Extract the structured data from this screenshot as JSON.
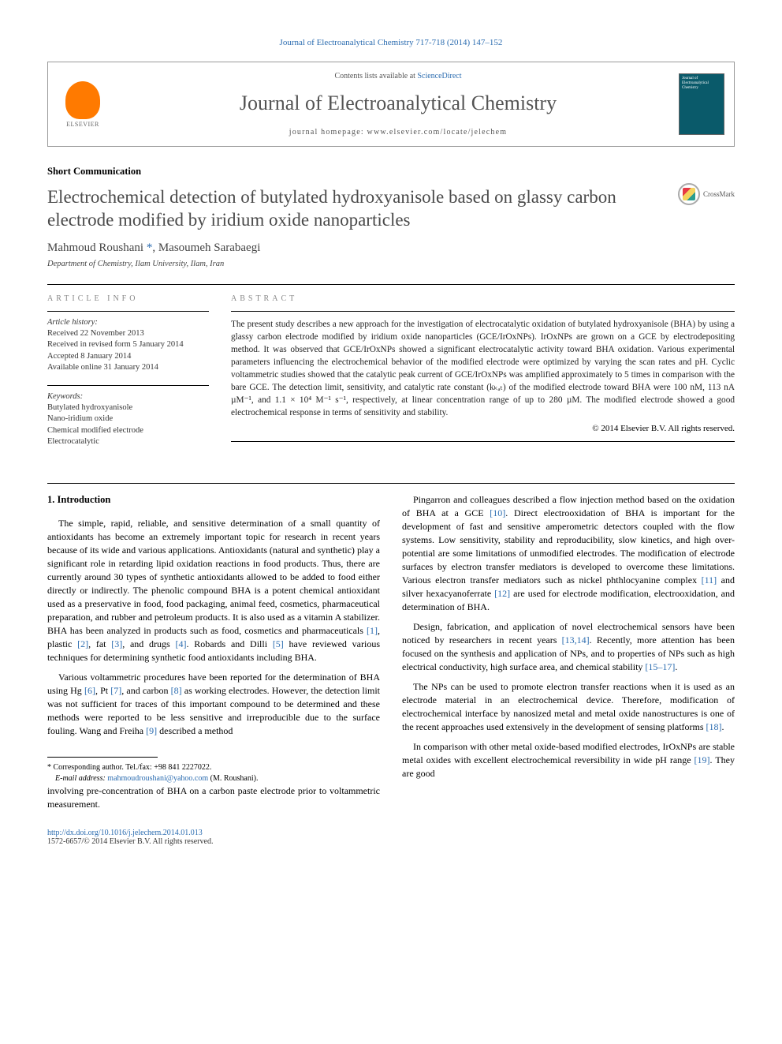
{
  "journal": {
    "reference": "Journal of Electroanalytical Chemistry 717-718 (2014) 147–152",
    "contentsLine": "Contents lists available at ",
    "contentsLink": "ScienceDirect",
    "name": "Journal of Electroanalytical Chemistry",
    "homepagePrefix": "journal homepage: ",
    "homepage": "www.elsevier.com/locate/jelechem",
    "publisherLogo": "ELSEVIER",
    "coverText": "Journal of Electroanalytical Chemistry"
  },
  "article": {
    "type": "Short Communication",
    "title": "Electrochemical detection of butylated hydroxyanisole based on glassy carbon electrode modified by iridium oxide nanoparticles",
    "crossmark": "CrossMark",
    "authorsHtml": "Mahmoud Roushani <a href=\"#\">*</a>, Masoumeh Sarabaegi",
    "affiliation": "Department of Chemistry, Ilam University, Ilam, Iran"
  },
  "info": {
    "heading": "ARTICLE INFO",
    "historyLabel": "Article history:",
    "history": [
      "Received 22 November 2013",
      "Received in revised form 5 January 2014",
      "Accepted 8 January 2014",
      "Available online 31 January 2014"
    ],
    "keywordsLabel": "Keywords:",
    "keywords": [
      "Butylated hydroxyanisole",
      "Nano-iridium oxide",
      "Chemical modified electrode",
      "Electrocatalytic"
    ]
  },
  "abstract": {
    "heading": "ABSTRACT",
    "text": "The present study describes a new approach for the investigation of electrocatalytic oxidation of butylated hydroxyanisole (BHA) by using a glassy carbon electrode modified by iridium oxide nanoparticles (GCE/IrOxNPs). IrOxNPs are grown on a GCE by electrodepositing method. It was observed that GCE/IrOxNPs showed a significant electrocatalytic activity toward BHA oxidation. Various experimental parameters influencing the electrochemical behavior of the modified electrode were optimized by varying the scan rates and pH. Cyclic voltammetric studies showed that the catalytic peak current of GCE/IrOxNPs was amplified approximately to 5 times in comparison with the bare GCE. The detection limit, sensitivity, and catalytic rate constant (kₖₐₜ) of the modified electrode toward BHA were 100 nM, 113 nA µM⁻¹, and 1.1 × 10⁴ M⁻¹ s⁻¹, respectively, at linear concentration range of up to 280 µM. The modified electrode showed a good electrochemical response in terms of sensitivity and stability.",
    "copyright": "© 2014 Elsevier B.V. All rights reserved."
  },
  "body": {
    "sectionNumber": "1.",
    "sectionTitle": "Introduction",
    "p1": "The simple, rapid, reliable, and sensitive determination of a small quantity of antioxidants has become an extremely important topic for research in recent years because of its wide and various applications. Antioxidants (natural and synthetic) play a significant role in retarding lipid oxidation reactions in food products. Thus, there are currently around 30 types of synthetic antioxidants allowed to be added to food either directly or indirectly. The phenolic compound BHA is a potent chemical antioxidant used as a preservative in food, food packaging, animal feed, cosmetics, pharmaceutical preparation, and rubber and petroleum products. It is also used as a vitamin A stabilizer. BHA has been analyzed in products such as food, cosmetics and pharmaceuticals <a href=\"#\">[1]</a>, plastic <a href=\"#\">[2]</a>, fat <a href=\"#\">[3]</a>, and drugs <a href=\"#\">[4]</a>. Robards and Dilli <a href=\"#\">[5]</a> have reviewed various techniques for determining synthetic food antioxidants including BHA.",
    "p2": "Various voltammetric procedures have been reported for the determination of BHA using Hg <a href=\"#\">[6]</a>, Pt <a href=\"#\">[7]</a>, and carbon <a href=\"#\">[8]</a> as working electrodes. However, the detection limit was not sufficient for traces of this important compound to be determined and these methods were reported to be less sensitive and irreproducible due to the surface fouling. Wang and Freiha <a href=\"#\">[9]</a> described a method",
    "p3top": "involving pre-concentration of BHA on a carbon paste electrode prior to voltammetric measurement.",
    "p3": "Pingarron and colleagues described a flow injection method based on the oxidation of BHA at a GCE <a href=\"#\">[10]</a>. Direct electrooxidation of BHA is important for the development of fast and sensitive amperometric detectors coupled with the flow systems. Low sensitivity, stability and reproducibility, slow kinetics, and high over-potential are some limitations of unmodified electrodes. The modification of electrode surfaces by electron transfer mediators is developed to overcome these limitations. Various electron transfer mediators such as nickel phthlocyanine complex <a href=\"#\">[11]</a> and silver hexacyanoferrate <a href=\"#\">[12]</a> are used for electrode modification, electrooxidation, and determination of BHA.",
    "p4": "Design, fabrication, and application of novel electrochemical sensors have been noticed by researchers in recent years <a href=\"#\">[13,14]</a>. Recently, more attention has been focused on the synthesis and application of NPs, and to properties of NPs such as high electrical conductivity, high surface area, and chemical stability <a href=\"#\">[15–17]</a>.",
    "p5": "The NPs can be used to promote electron transfer reactions when it is used as an electrode material in an electrochemical device. Therefore, modification of electrochemical interface by nanosized metal and metal oxide nanostructures is one of the recent approaches used extensively in the development of sensing platforms <a href=\"#\">[18]</a>.",
    "p6": "In comparison with other metal oxide-based modified electrodes, IrOxNPs are stable metal oxides with excellent electrochemical reversibility in wide pH range <a href=\"#\">[19]</a>. They are good"
  },
  "footnotes": {
    "corr": "* Corresponding author. Tel./fax: +98 841 2227022.",
    "emailLabel": "E-mail address: ",
    "email": "mahmoudroushani@yahoo.com",
    "emailSuffix": " (M. Roushani)."
  },
  "footer": {
    "doi": "http://dx.doi.org/10.1016/j.jelechem.2014.01.013",
    "issn": "1572-6657/© 2014 Elsevier B.V. All rights reserved."
  },
  "colors": {
    "link": "#2b6cb0",
    "muted": "#888",
    "elsevier": "#ff7a00",
    "cover": "#0a5a6a"
  }
}
